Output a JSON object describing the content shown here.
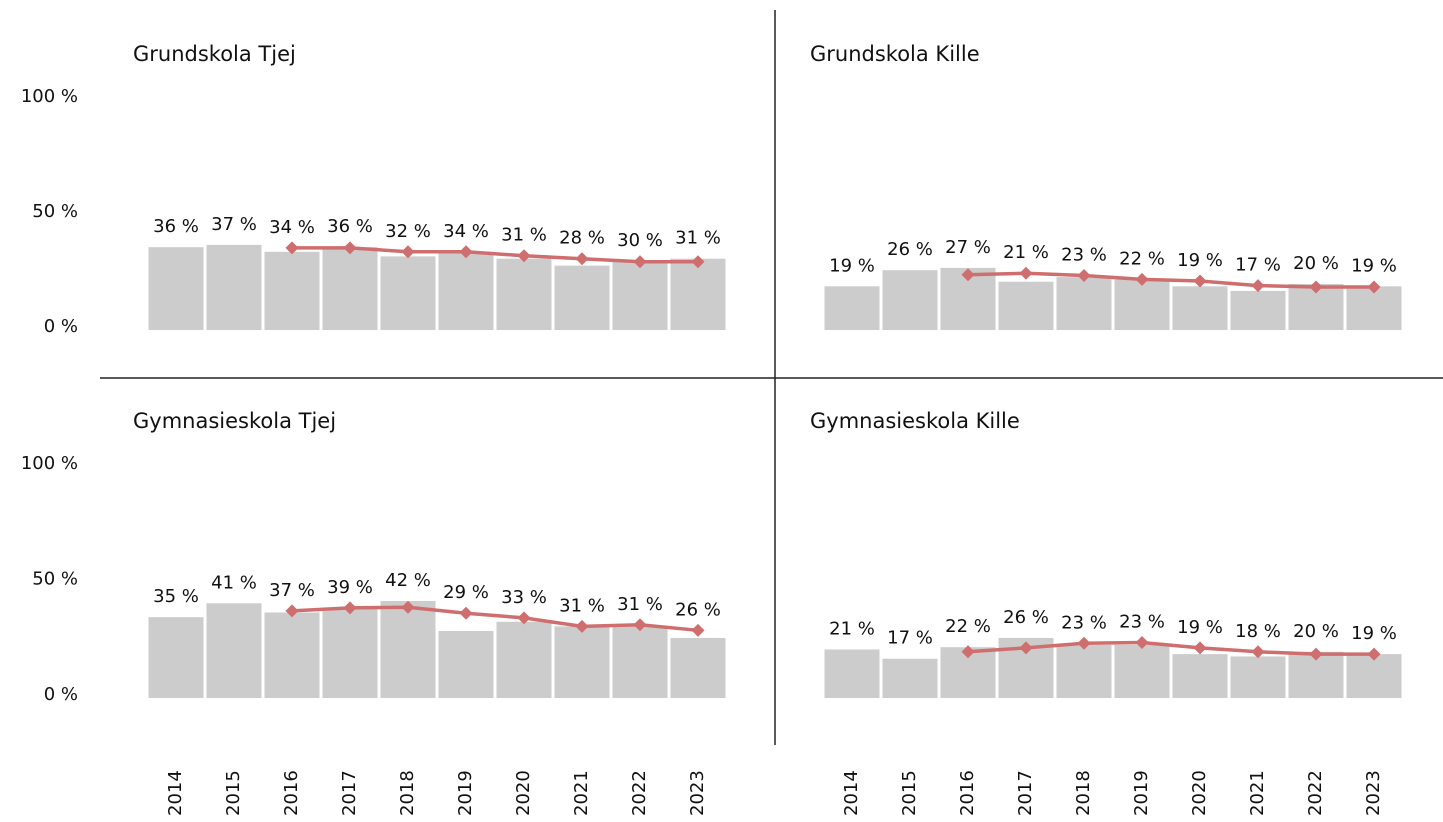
{
  "chart_data": {
    "type": "bar",
    "categories": [
      "2014",
      "2015",
      "2016",
      "2017",
      "2018",
      "2019",
      "2020",
      "2021",
      "2022",
      "2023"
    ],
    "ylim": [
      0,
      100
    ],
    "yticks": [
      {
        "value": 0,
        "label": "0 %"
      },
      {
        "value": 50,
        "label": "50 %"
      },
      {
        "value": 100,
        "label": "100 %"
      }
    ],
    "panels": [
      {
        "title": "Grundskola Tjej",
        "series": [
          {
            "type": "bar",
            "color": "#cccccc",
            "values": [
              36,
              37,
              34,
              36,
              32,
              34,
              31,
              28,
              30,
              31
            ],
            "value_labels": [
              "36 %",
              "37 %",
              "34 %",
              "36 %",
              "32 %",
              "34 %",
              "31 %",
              "28 %",
              "30 %",
              "31 %"
            ]
          },
          {
            "type": "line",
            "color": "#cf6e6e",
            "values": [
              null,
              null,
              35.7,
              35.7,
              34,
              34,
              32.3,
              31,
              29.7,
              29.7
            ]
          }
        ]
      },
      {
        "title": "Grundskola Kille",
        "series": [
          {
            "type": "bar",
            "color": "#cccccc",
            "values": [
              19,
              26,
              27,
              21,
              23,
              22,
              19,
              17,
              20,
              19
            ],
            "value_labels": [
              "19 %",
              "26 %",
              "27 %",
              "21 %",
              "23 %",
              "22 %",
              "19 %",
              "17 %",
              "20 %",
              "19 %"
            ]
          },
          {
            "type": "line",
            "color": "#cf6e6e",
            "values": [
              null,
              null,
              24,
              24.7,
              23.7,
              22,
              21.3,
              19.3,
              18.7,
              18.7
            ]
          }
        ]
      },
      {
        "title": "Gymnasieskola Tjej",
        "series": [
          {
            "type": "bar",
            "color": "#cccccc",
            "values": [
              35,
              41,
              37,
              39,
              42,
              29,
              33,
              31,
              31,
              26
            ],
            "value_labels": [
              "35 %",
              "41 %",
              "37 %",
              "39 %",
              "42 %",
              "29 %",
              "33 %",
              "31 %",
              "31 %",
              "26 %"
            ]
          },
          {
            "type": "line",
            "color": "#cf6e6e",
            "values": [
              null,
              null,
              37.7,
              39,
              39.3,
              36.7,
              34.7,
              31,
              31.7,
              29.3
            ]
          }
        ]
      },
      {
        "title": "Gymnasieskola Kille",
        "series": [
          {
            "type": "bar",
            "color": "#cccccc",
            "values": [
              21,
              17,
              22,
              26,
              23,
              23,
              19,
              18,
              20,
              19
            ],
            "value_labels": [
              "21 %",
              "17 %",
              "22 %",
              "26 %",
              "23 %",
              "23 %",
              "19 %",
              "18 %",
              "20 %",
              "19 %"
            ]
          },
          {
            "type": "line",
            "color": "#cf6e6e",
            "values": [
              null,
              null,
              20,
              21.7,
              23.7,
              24,
              21.7,
              20,
              19,
              19
            ]
          }
        ]
      }
    ]
  }
}
